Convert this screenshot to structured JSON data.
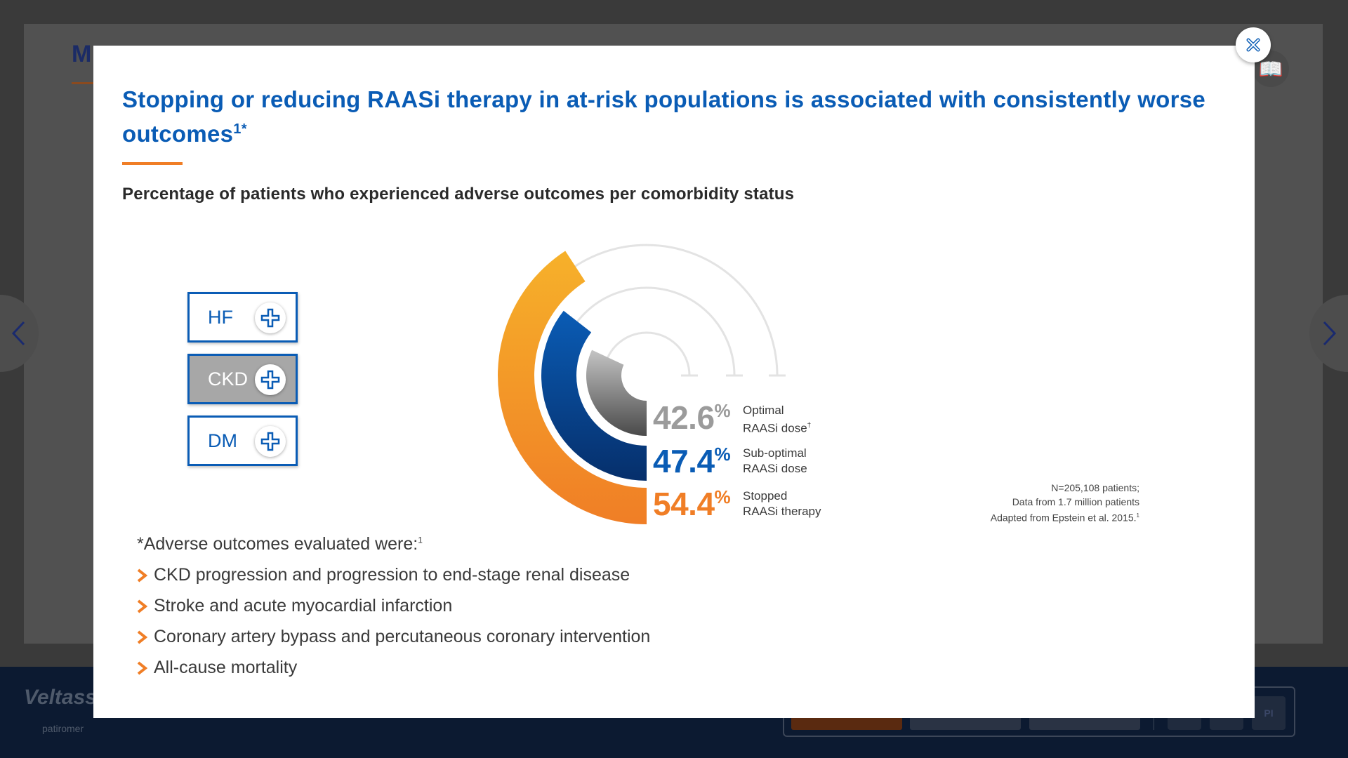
{
  "background": {
    "title": "M",
    "footer": {
      "logo": "Veltassa",
      "logo_sub": "patiromer",
      "toolbar_pi": "PI"
    }
  },
  "modal": {
    "headline": "Stopping or reducing RAASi therapy in at-risk populations is associated with consistently worse outcomes",
    "headline_sup": "1*",
    "subhead": "Percentage of patients who experienced adverse outcomes per comorbidity status",
    "toggles": [
      {
        "label": "HF",
        "active": false
      },
      {
        "label": "CKD",
        "active": true
      },
      {
        "label": "DM",
        "active": false
      }
    ],
    "stats": [
      {
        "value": "42.6",
        "unit": "%",
        "line1": "Optimal",
        "line2": "RAASi dose",
        "sup": "†",
        "color": "#9b9b9b"
      },
      {
        "value": "47.4",
        "unit": "%",
        "line1": "Sub-optimal",
        "line2": "RAASi dose",
        "sup": "",
        "color": "#0a5cb5"
      },
      {
        "value": "54.4",
        "unit": "%",
        "line1": "Stopped",
        "line2": "RAASi therapy",
        "sup": "",
        "color": "#f07e26"
      }
    ],
    "source_lines": [
      "N=205,108 patients;",
      "Data from 1.7 million patients",
      "Adapted from Epstein et al. 2015."
    ],
    "source_sup": "1",
    "list_intro": "*Adverse outcomes evaluated were:",
    "list_intro_sup": "1",
    "outcomes": [
      "CKD progression and progression to end-stage renal disease",
      "Stroke and acute myocardial infarction",
      "Coronary artery bypass and percutaneous coronary intervention",
      "All-cause mortality"
    ]
  },
  "colors": {
    "brand_blue": "#0a5cb5",
    "accent_orange": "#f07e26",
    "gray": "#9b9b9b"
  },
  "chart_data": {
    "type": "radial-bar",
    "categories": [
      "Optimal RAASi dose",
      "Sub-optimal RAASi dose",
      "Stopped RAASi therapy"
    ],
    "values": [
      42.6,
      47.4,
      54.4
    ],
    "unit": "%",
    "ylim": [
      0,
      100
    ]
  }
}
